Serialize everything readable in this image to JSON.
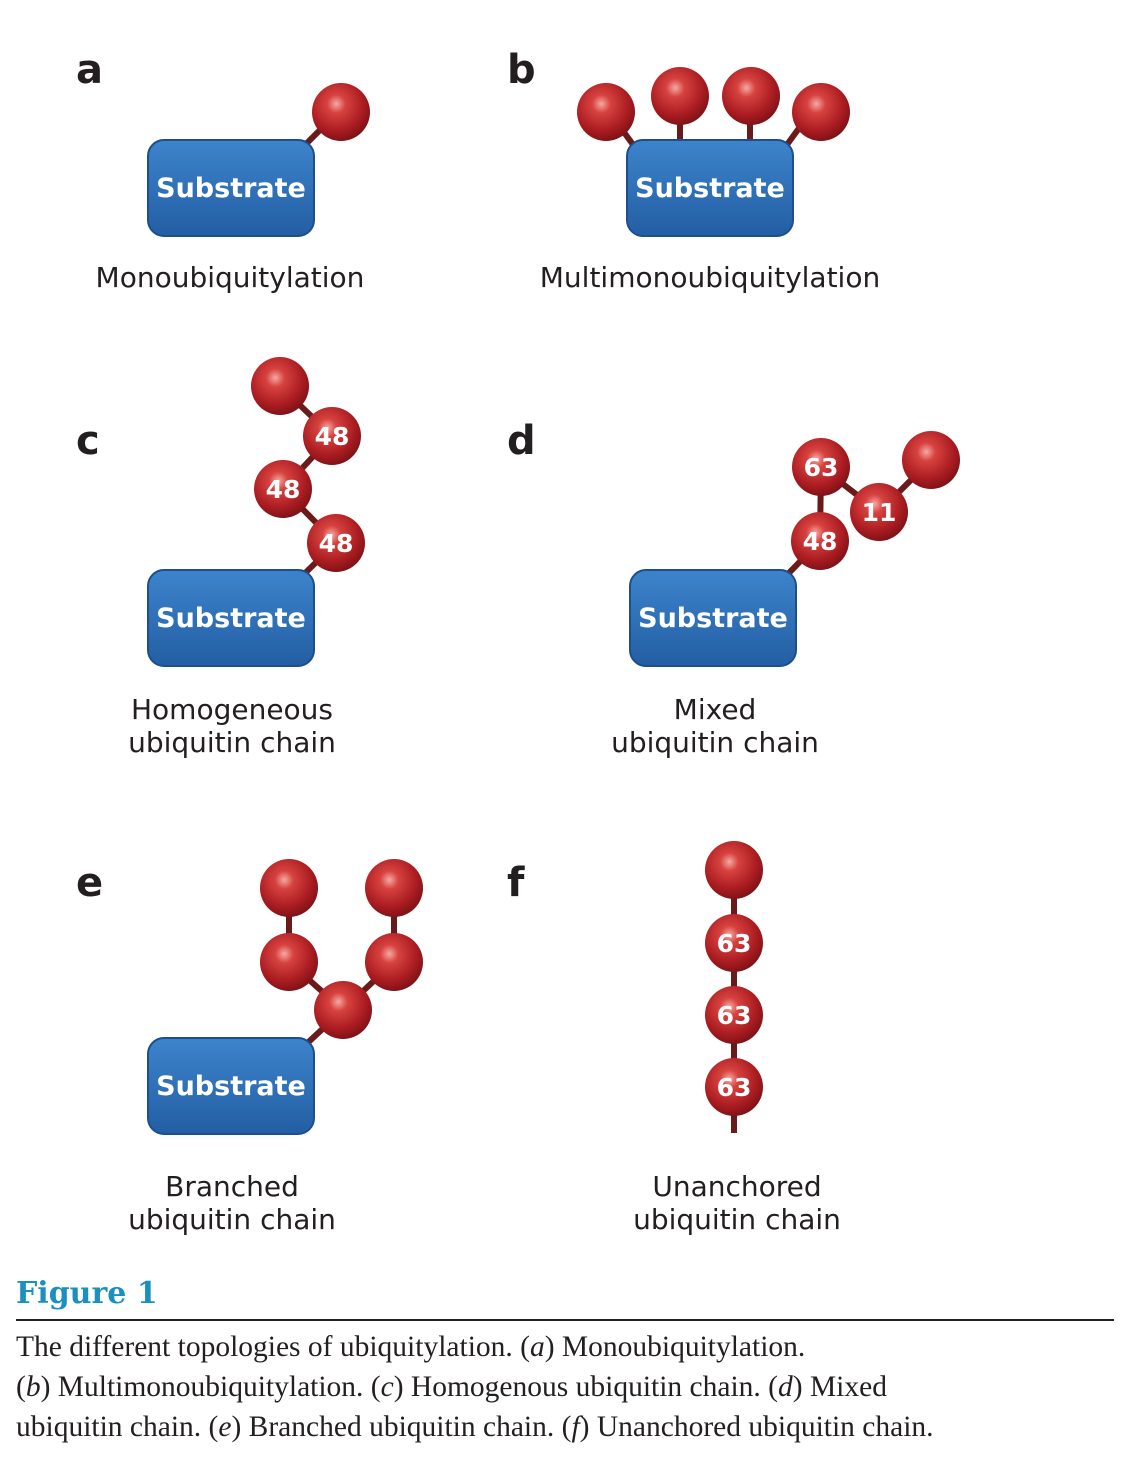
{
  "panels": [
    {
      "id": "a",
      "letter": "a",
      "caption": [
        "Monoubiquitylation"
      ],
      "substrate": "Substrate"
    },
    {
      "id": "b",
      "letter": "b",
      "caption": [
        "Multimonoubiquitylation"
      ],
      "substrate": "Substrate"
    },
    {
      "id": "c",
      "letter": "c",
      "caption": [
        "Homogeneous",
        "ubiquitin chain"
      ],
      "substrate": "Substrate",
      "links": [
        "48",
        "48",
        "48"
      ]
    },
    {
      "id": "d",
      "letter": "d",
      "caption": [
        "Mixed",
        "ubiquitin chain"
      ],
      "substrate": "Substrate",
      "links": [
        "48",
        "63",
        "11"
      ]
    },
    {
      "id": "e",
      "letter": "e",
      "caption": [
        "Branched",
        "ubiquitin chain"
      ],
      "substrate": "Substrate"
    },
    {
      "id": "f",
      "letter": "f",
      "caption": [
        "Unanchored",
        "ubiquitin chain"
      ],
      "links": [
        "63",
        "63",
        "63"
      ]
    }
  ],
  "colors": {
    "substrate": "#2e6fb7",
    "ubiquitin": "#b01f24",
    "linker": "#6b1a1a",
    "figure_label": "#1a8fc2"
  },
  "figure": {
    "label": "Figure 1",
    "caption_lines": [
      [
        {
          "t": "The different topologies of ubiquitylation. ("
        },
        {
          "t": "a",
          "i": true
        },
        {
          "t": ") Monoubiquitylation."
        }
      ],
      [
        {
          "t": "("
        },
        {
          "t": "b",
          "i": true
        },
        {
          "t": ") Multimonoubiquitylation. ("
        },
        {
          "t": "c",
          "i": true
        },
        {
          "t": ") Homogenous ubiquitin chain. ("
        },
        {
          "t": "d",
          "i": true
        },
        {
          "t": ") Mixed"
        }
      ],
      [
        {
          "t": "ubiquitin chain. ("
        },
        {
          "t": "e",
          "i": true
        },
        {
          "t": ") Branched ubiquitin chain. ("
        },
        {
          "t": "f",
          "i": true
        },
        {
          "t": ") Unanchored ubiquitin chain."
        }
      ]
    ]
  }
}
